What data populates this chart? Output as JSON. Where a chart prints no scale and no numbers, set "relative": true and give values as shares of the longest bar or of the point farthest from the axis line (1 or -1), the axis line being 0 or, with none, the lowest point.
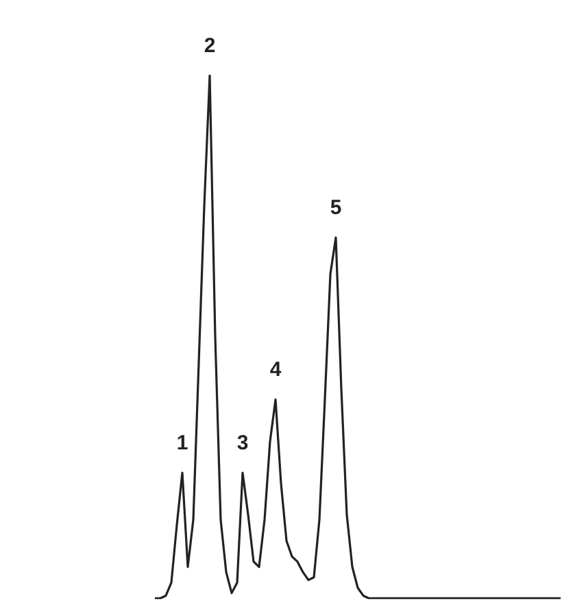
{
  "chart_data": {
    "type": "line",
    "relative": true,
    "grid": false,
    "marker": "none",
    "categories": [
      null,
      null,
      null,
      null,
      null,
      null,
      null,
      null,
      null,
      null,
      null,
      null,
      null,
      null,
      null,
      null,
      null,
      null,
      null,
      null,
      null,
      null,
      null,
      null,
      null,
      null,
      null,
      null,
      null,
      null,
      null,
      null,
      null,
      null,
      null,
      null,
      null,
      null,
      null,
      null,
      null,
      null,
      null,
      null,
      null,
      null,
      null,
      null,
      null,
      null,
      null,
      null,
      null,
      null,
      null,
      null,
      null,
      null,
      null,
      null,
      null,
      null,
      null,
      null,
      null,
      null,
      null,
      null,
      null,
      null,
      null,
      null,
      null,
      null,
      null
    ],
    "series": [
      {
        "color": "#222222",
        "values": [
          0,
          0,
          0.005,
          0.03,
          0.14,
          0.24,
          0.06,
          0.15,
          0.45,
          0.75,
          1,
          0.5,
          0.15,
          0.05,
          0.01,
          0.03,
          0.24,
          0.16,
          0.07,
          0.06,
          0.15,
          0.3,
          0.38,
          0.22,
          0.11,
          0.08,
          0.07,
          0.05,
          0.035,
          0.04,
          0.15,
          0.38,
          0.62,
          0.69,
          0.4,
          0.16,
          0.06,
          0.02,
          0.005,
          0,
          0,
          0,
          0,
          0,
          0,
          0,
          0,
          0,
          0,
          0,
          0,
          0,
          0,
          0,
          0,
          0,
          0,
          0,
          0,
          0,
          0,
          0,
          0,
          0,
          0,
          0,
          0,
          0,
          0,
          0,
          0,
          0,
          0,
          0,
          0
        ]
      }
    ],
    "annotations": [
      "1",
      "2",
      "3",
      "4",
      "5"
    ]
  }
}
